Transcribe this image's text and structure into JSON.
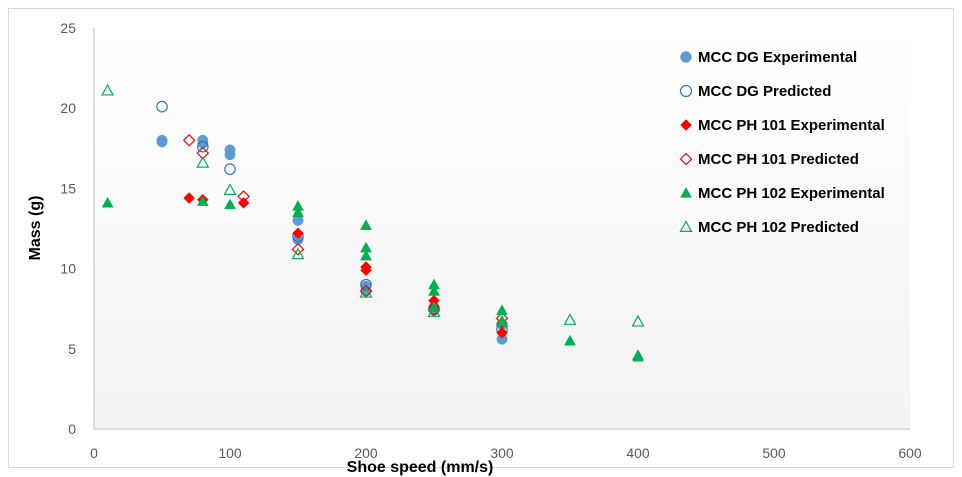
{
  "chart_data": {
    "type": "scatter",
    "xlabel": "Shoe speed (mm/s)",
    "ylabel": "Mass (g)",
    "xlim": [
      0,
      600
    ],
    "ylim": [
      0,
      25
    ],
    "xticks": [
      0,
      100,
      200,
      300,
      400,
      500,
      600
    ],
    "yticks": [
      0,
      5,
      10,
      15,
      20,
      25
    ],
    "grid": false,
    "legend_position": "right",
    "series": [
      {
        "name": "MCC DG Experimental",
        "marker": "circle",
        "filled": true,
        "color": "#5b9bd5",
        "points": [
          [
            50,
            17.9
          ],
          [
            50,
            18.0
          ],
          [
            80,
            17.8
          ],
          [
            80,
            18.0
          ],
          [
            100,
            17.1
          ],
          [
            100,
            17.4
          ],
          [
            150,
            11.8
          ],
          [
            150,
            13.0
          ],
          [
            200,
            8.6
          ],
          [
            200,
            8.9
          ],
          [
            250,
            7.4
          ],
          [
            250,
            7.6
          ],
          [
            300,
            5.6
          ],
          [
            300,
            6.5
          ]
        ]
      },
      {
        "name": "MCC DG Predicted",
        "marker": "circle",
        "filled": false,
        "color": "#2e75b6",
        "points": [
          [
            50,
            20.1
          ],
          [
            80,
            17.6
          ],
          [
            100,
            16.2
          ],
          [
            150,
            12.0
          ],
          [
            200,
            9.0
          ],
          [
            250,
            7.5
          ],
          [
            300,
            6.2
          ]
        ]
      },
      {
        "name": "MCC PH 101 Experimental",
        "marker": "diamond",
        "filled": true,
        "color": "#ff0000",
        "points": [
          [
            70,
            14.4
          ],
          [
            80,
            14.3
          ],
          [
            110,
            14.1
          ],
          [
            150,
            12.2
          ],
          [
            200,
            10.1
          ],
          [
            200,
            9.9
          ],
          [
            250,
            8.0
          ],
          [
            250,
            7.6
          ],
          [
            300,
            6.0
          ],
          [
            300,
            6.6
          ]
        ]
      },
      {
        "name": "MCC PH 101 Predicted",
        "marker": "diamond",
        "filled": false,
        "color": "#ff0000",
        "points": [
          [
            70,
            18.0
          ],
          [
            80,
            17.2
          ],
          [
            110,
            14.5
          ],
          [
            150,
            11.2
          ],
          [
            200,
            8.6
          ],
          [
            250,
            7.4
          ],
          [
            300,
            6.9
          ]
        ]
      },
      {
        "name": "MCC PH 102 Experimental",
        "marker": "triangle",
        "filled": true,
        "color": "#00b050",
        "points": [
          [
            10,
            14.1
          ],
          [
            80,
            14.2
          ],
          [
            100,
            14.0
          ],
          [
            150,
            13.9
          ],
          [
            150,
            13.5
          ],
          [
            200,
            12.7
          ],
          [
            200,
            11.3
          ],
          [
            200,
            10.8
          ],
          [
            250,
            9.0
          ],
          [
            250,
            8.6
          ],
          [
            250,
            7.6
          ],
          [
            300,
            7.4
          ],
          [
            300,
            6.7
          ],
          [
            350,
            5.5
          ],
          [
            400,
            4.6
          ],
          [
            400,
            4.5
          ]
        ]
      },
      {
        "name": "MCC PH 102 Predicted",
        "marker": "triangle",
        "filled": false,
        "color": "#00b050",
        "points": [
          [
            10,
            21.1
          ],
          [
            80,
            16.6
          ],
          [
            100,
            14.9
          ],
          [
            150,
            10.9
          ],
          [
            200,
            8.5
          ],
          [
            250,
            7.3
          ],
          [
            300,
            6.7
          ],
          [
            350,
            6.8
          ],
          [
            400,
            6.7
          ]
        ]
      }
    ]
  }
}
